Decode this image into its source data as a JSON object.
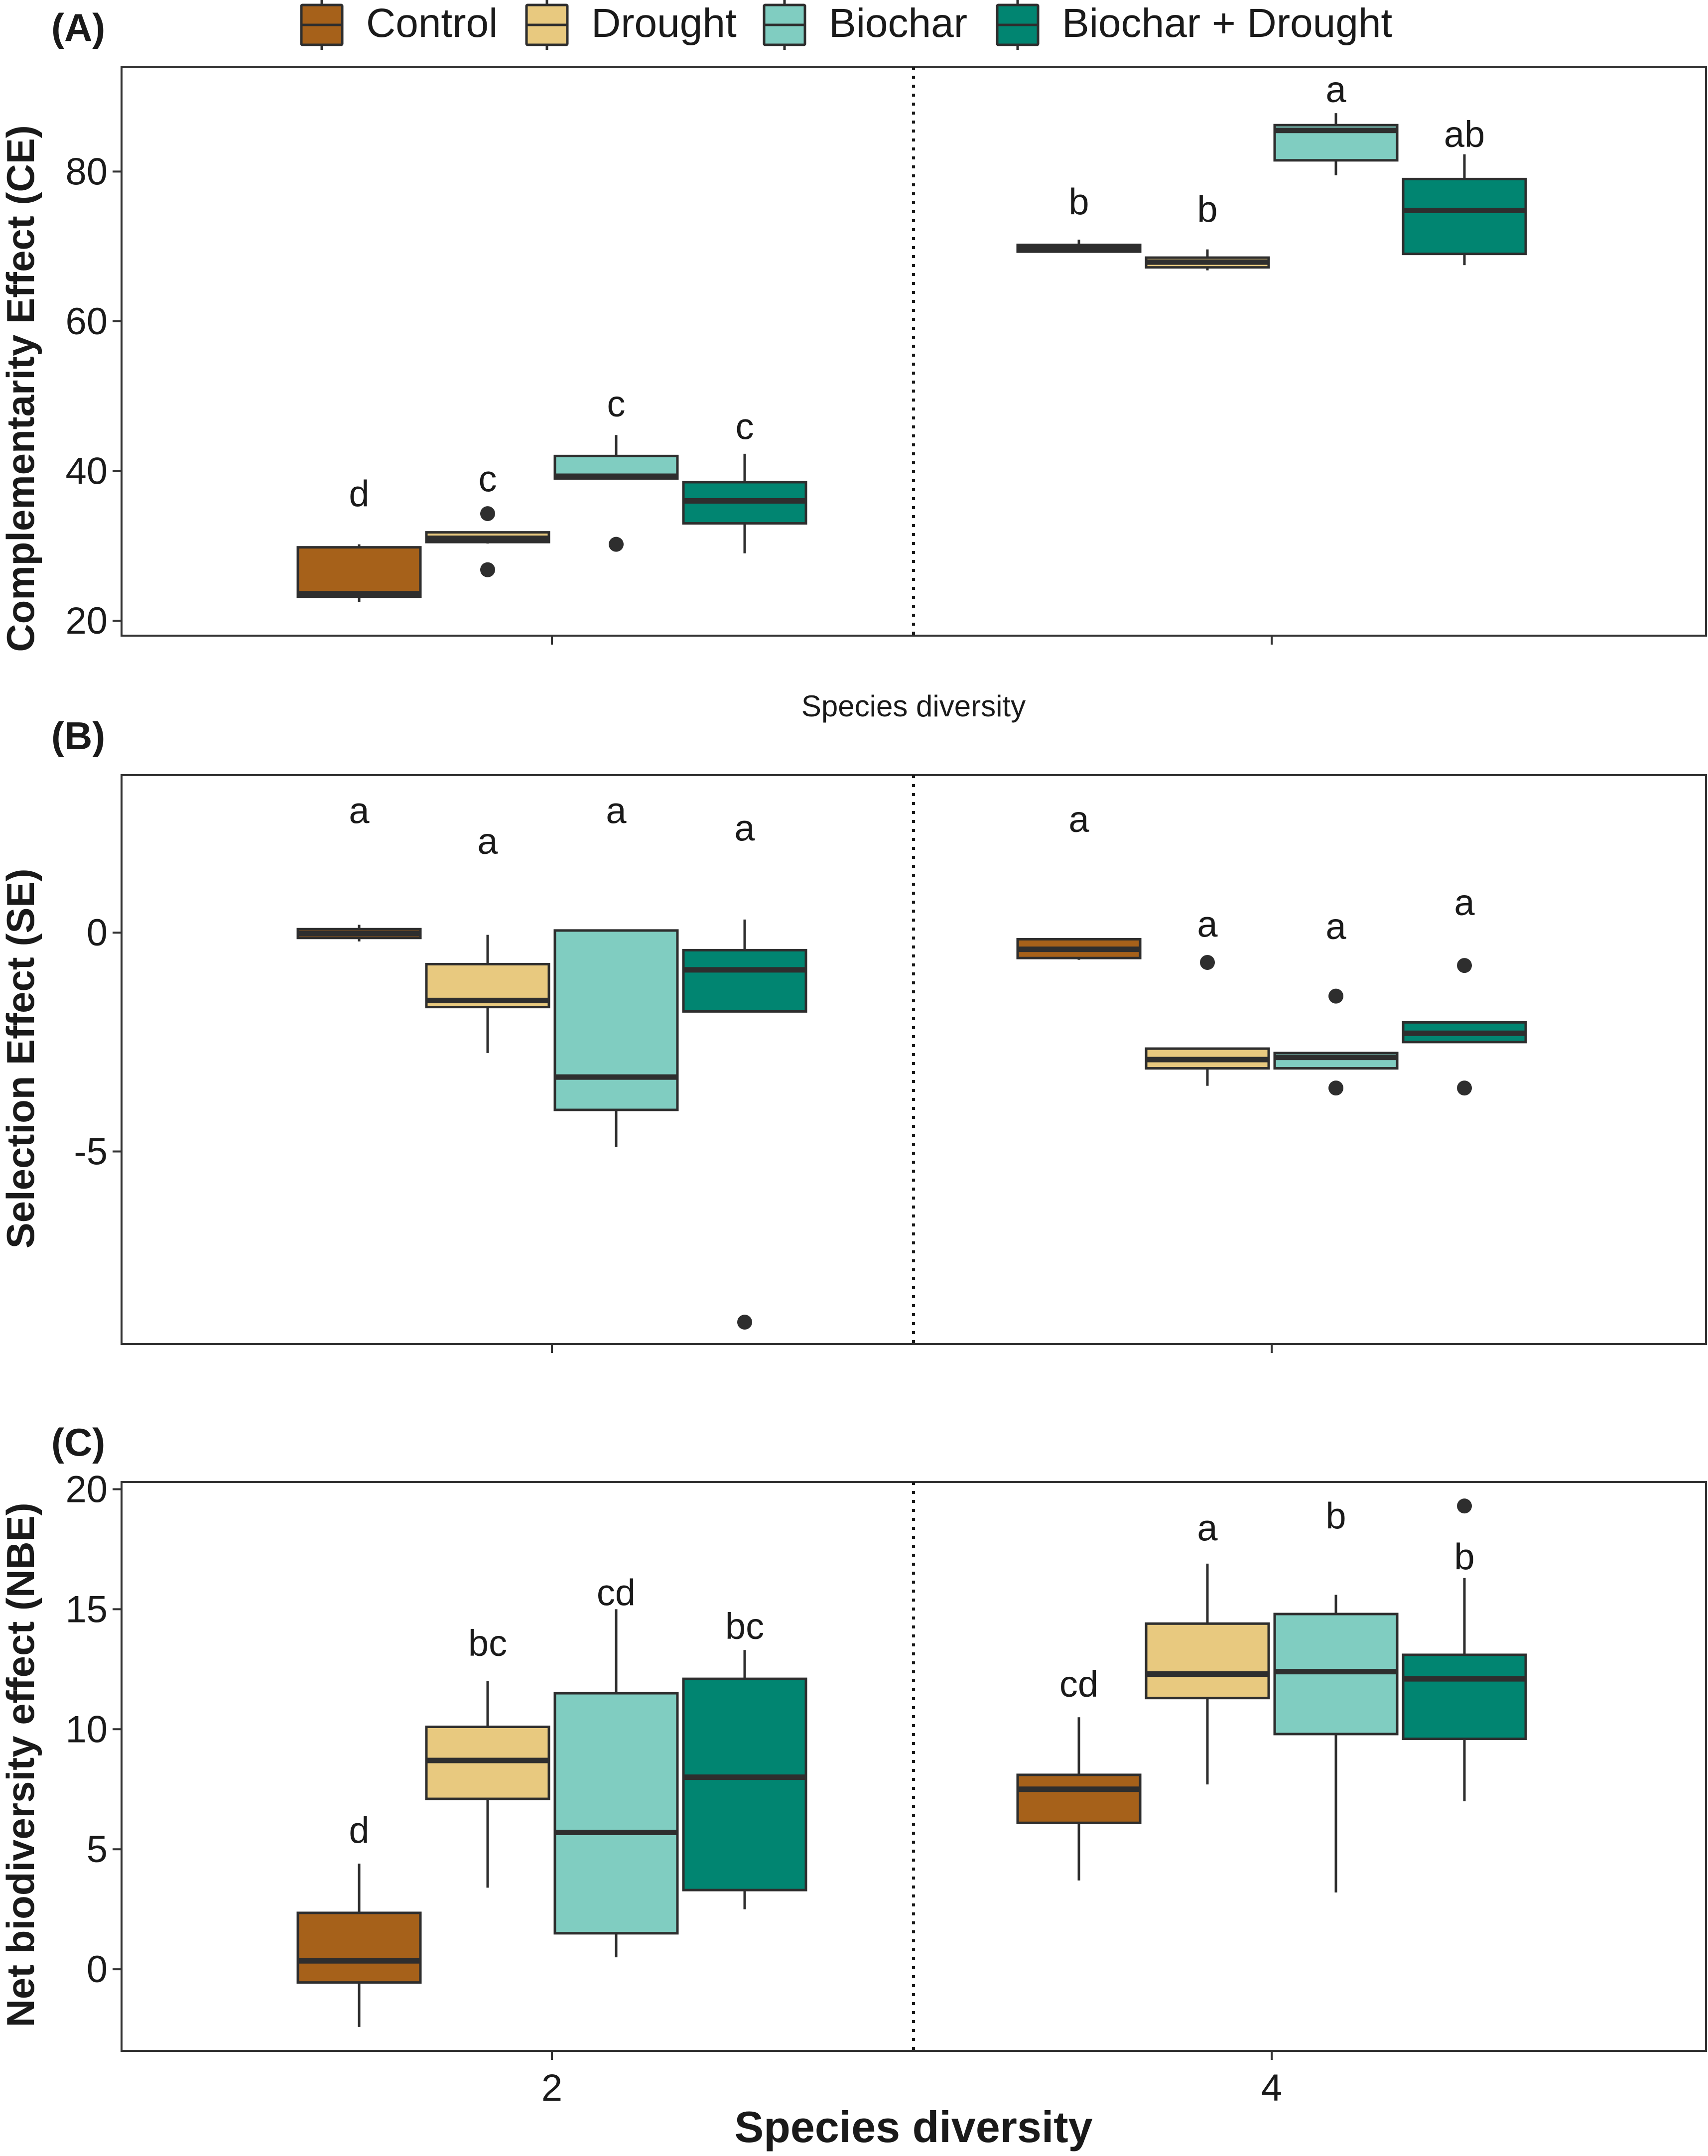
{
  "legend": {
    "items": [
      {
        "label": "Control",
        "color": "#A6611A"
      },
      {
        "label": "Drought",
        "color": "#E8C97F"
      },
      {
        "label": "Biochar",
        "color": "#80CDC1"
      },
      {
        "label": "Biochar + Drought",
        "color": "#018571"
      }
    ]
  },
  "xlabel": "Species diversity",
  "colors": {
    "box_stroke": "#2e2e2e",
    "panel_border": "#333333",
    "text": "#1a1a1a"
  },
  "chart_data": [
    {
      "type": "boxplot",
      "panel_label": "(A)",
      "ylabel": "Complementarity Effect (CE)",
      "xlabel": "Species diversity",
      "categories": [
        "2",
        "4"
      ],
      "ylim": [
        18,
        94
      ],
      "yticks": [
        20,
        40,
        60,
        80
      ],
      "ytick_labels": [
        "20",
        "40",
        "60",
        "80"
      ],
      "show_x_tick_labels": false,
      "groups": [
        {
          "diversity": "2",
          "treatment": "Control",
          "whisker_low": 22.5,
          "q1": 23.2,
          "median": 23.6,
          "q3": 29.8,
          "whisker_high": 30.2,
          "outliers": [],
          "letter": "d",
          "letter_y": 37
        },
        {
          "diversity": "2",
          "treatment": "Drought",
          "whisker_low": 30.3,
          "q1": 30.5,
          "median": 31.0,
          "q3": 31.8,
          "whisker_high": 31.9,
          "outliers": [
            34.3,
            26.8
          ],
          "letter": "c",
          "letter_y": 39
        },
        {
          "diversity": "2",
          "treatment": "Biochar",
          "whisker_low": 39.0,
          "q1": 39.0,
          "median": 39.3,
          "q3": 42.0,
          "whisker_high": 44.8,
          "outliers": [
            30.2
          ],
          "letter": "c",
          "letter_y": 49
        },
        {
          "diversity": "2",
          "treatment": "Biochar + Drought",
          "whisker_low": 29.0,
          "q1": 33.0,
          "median": 36.0,
          "q3": 38.5,
          "whisker_high": 42.3,
          "outliers": [],
          "letter": "c",
          "letter_y": 46
        },
        {
          "diversity": "4",
          "treatment": "Control",
          "whisker_low": 69.3,
          "q1": 69.3,
          "median": 69.7,
          "q3": 70.2,
          "whisker_high": 70.9,
          "outliers": [],
          "letter": "b",
          "letter_y": 76
        },
        {
          "diversity": "4",
          "treatment": "Drought",
          "whisker_low": 66.8,
          "q1": 67.2,
          "median": 67.9,
          "q3": 68.5,
          "whisker_high": 69.6,
          "outliers": [],
          "letter": "b",
          "letter_y": 75
        },
        {
          "diversity": "4",
          "treatment": "Biochar",
          "whisker_low": 79.5,
          "q1": 81.5,
          "median": 85.5,
          "q3": 86.2,
          "whisker_high": 87.8,
          "outliers": [],
          "letter": "a",
          "letter_y": 91
        },
        {
          "diversity": "4",
          "treatment": "Biochar + Drought",
          "whisker_low": 67.5,
          "q1": 69.0,
          "median": 74.8,
          "q3": 79.0,
          "whisker_high": 82.3,
          "outliers": [],
          "letter": "ab",
          "letter_y": 85
        }
      ]
    },
    {
      "type": "boxplot",
      "panel_label": "(B)",
      "ylabel": "Selection Effect (SE)",
      "xlabel": "",
      "categories": [
        "2",
        "4"
      ],
      "ylim": [
        -9.4,
        3.6
      ],
      "yticks": [
        0,
        -5
      ],
      "ytick_labels": [
        "0",
        "-5"
      ],
      "show_x_tick_labels": false,
      "groups": [
        {
          "diversity": "2",
          "treatment": "Control",
          "whisker_low": -0.2,
          "q1": -0.12,
          "median": -0.02,
          "q3": 0.08,
          "whisker_high": 0.18,
          "outliers": [],
          "letter": "a",
          "letter_y": 2.8
        },
        {
          "diversity": "2",
          "treatment": "Drought",
          "whisker_low": -2.75,
          "q1": -1.7,
          "median": -1.55,
          "q3": -0.72,
          "whisker_high": -0.05,
          "outliers": [],
          "letter": "a",
          "letter_y": 2.1
        },
        {
          "diversity": "2",
          "treatment": "Biochar",
          "whisker_low": -4.9,
          "q1": -4.05,
          "median": -3.3,
          "q3": 0.05,
          "whisker_high": 0.05,
          "outliers": [],
          "letter": "a",
          "letter_y": 2.8
        },
        {
          "diversity": "2",
          "treatment": "Biochar + Drought",
          "whisker_low": -1.8,
          "q1": -1.8,
          "median": -0.85,
          "q3": -0.4,
          "whisker_high": 0.3,
          "outliers": [
            -8.9
          ],
          "letter": "a",
          "letter_y": 2.4
        },
        {
          "diversity": "4",
          "treatment": "Control",
          "whisker_low": -0.62,
          "q1": -0.58,
          "median": -0.38,
          "q3": -0.15,
          "whisker_high": -0.15,
          "outliers": [],
          "letter": "a",
          "letter_y": 2.6
        },
        {
          "diversity": "4",
          "treatment": "Drought",
          "whisker_low": -3.5,
          "q1": -3.1,
          "median": -2.9,
          "q3": -2.65,
          "whisker_high": -2.65,
          "outliers": [
            -0.68
          ],
          "letter": "a",
          "letter_y": 0.2
        },
        {
          "diversity": "4",
          "treatment": "Biochar",
          "whisker_low": -3.1,
          "q1": -3.1,
          "median": -2.85,
          "q3": -2.75,
          "whisker_high": -2.75,
          "outliers": [
            -1.45,
            -3.55
          ],
          "letter": "a",
          "letter_y": 0.15
        },
        {
          "diversity": "4",
          "treatment": "Biochar + Drought",
          "whisker_low": -2.5,
          "q1": -2.5,
          "median": -2.3,
          "q3": -2.05,
          "whisker_high": -2.05,
          "outliers": [
            -0.75,
            -3.55
          ],
          "letter": "a",
          "letter_y": 0.7
        }
      ]
    },
    {
      "type": "boxplot",
      "panel_label": "(C)",
      "ylabel": "Net biodiversity effect (NBE)",
      "xlabel": "Species diversity",
      "categories": [
        "2",
        "4"
      ],
      "ylim": [
        -3.4,
        20.3
      ],
      "yticks": [
        0,
        5,
        10,
        15,
        20
      ],
      "ytick_labels": [
        "0",
        "5",
        "10",
        "15",
        "20"
      ],
      "show_x_tick_labels": true,
      "groups": [
        {
          "diversity": "2",
          "treatment": "Control",
          "whisker_low": -2.4,
          "q1": -0.55,
          "median": 0.35,
          "q3": 2.35,
          "whisker_high": 4.4,
          "outliers": [],
          "letter": "d",
          "letter_y": 5.8
        },
        {
          "diversity": "2",
          "treatment": "Drought",
          "whisker_low": 3.4,
          "q1": 7.1,
          "median": 8.7,
          "q3": 10.1,
          "whisker_high": 12.0,
          "outliers": [],
          "letter": "bc",
          "letter_y": 13.6
        },
        {
          "diversity": "2",
          "treatment": "Biochar",
          "whisker_low": 0.5,
          "q1": 1.5,
          "median": 5.7,
          "q3": 11.5,
          "whisker_high": 15.0,
          "outliers": [],
          "letter": "cd",
          "letter_y": 15.7
        },
        {
          "diversity": "2",
          "treatment": "Biochar + Drought",
          "whisker_low": 2.5,
          "q1": 3.3,
          "median": 8.0,
          "q3": 12.1,
          "whisker_high": 13.3,
          "outliers": [],
          "letter": "bc",
          "letter_y": 14.3
        },
        {
          "diversity": "4",
          "treatment": "Control",
          "whisker_low": 3.7,
          "q1": 6.1,
          "median": 7.5,
          "q3": 8.1,
          "whisker_high": 10.5,
          "outliers": [],
          "letter": "cd",
          "letter_y": 11.9
        },
        {
          "diversity": "4",
          "treatment": "Drought",
          "whisker_low": 7.7,
          "q1": 11.3,
          "median": 12.3,
          "q3": 14.4,
          "whisker_high": 16.9,
          "outliers": [],
          "letter": "a",
          "letter_y": 18.4
        },
        {
          "diversity": "4",
          "treatment": "Biochar",
          "whisker_low": 3.2,
          "q1": 9.8,
          "median": 12.4,
          "q3": 14.8,
          "whisker_high": 15.6,
          "outliers": [],
          "letter": "b",
          "letter_y": 18.9
        },
        {
          "diversity": "4",
          "treatment": "Biochar + Drought",
          "whisker_low": 7.0,
          "q1": 9.6,
          "median": 12.1,
          "q3": 13.1,
          "whisker_high": 16.3,
          "outliers": [
            19.3
          ],
          "letter": "b",
          "letter_y": 17.2
        }
      ]
    }
  ]
}
